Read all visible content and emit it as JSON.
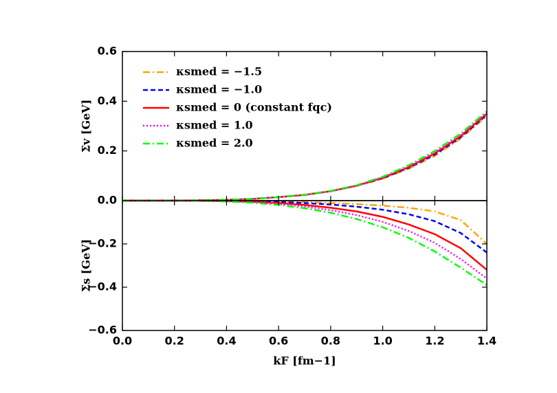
{
  "chart_data": [
    {
      "type": "line",
      "ylabel": "Σv [GeV]",
      "legend": "upper left",
      "x": [
        0,
        0.1,
        0.2,
        0.3,
        0.4,
        0.5,
        0.6,
        0.7,
        0.8,
        0.9,
        1.0,
        1.1,
        1.2,
        1.3,
        1.4
      ],
      "xlim": [
        0,
        1.4
      ],
      "ylim": [
        0,
        0.6
      ],
      "yticks": [
        {
          "value": 0,
          "label": "0.0"
        },
        0.2,
        0.4,
        0.6
      ],
      "series": [
        {
          "name": "κsmed = −1.5",
          "color": "#ffa500",
          "linestyle": "dashdot",
          "values": [
            0,
            0,
            0,
            0.001,
            0.003,
            0.007,
            0.014,
            0.023,
            0.038,
            0.06,
            0.088,
            0.128,
            0.18,
            0.25,
            0.34
          ]
        },
        {
          "name": "κsmed = −1.0",
          "color": "#0000ff",
          "linestyle": "dashed",
          "values": [
            0,
            0,
            0,
            0.001,
            0.003,
            0.007,
            0.014,
            0.023,
            0.038,
            0.06,
            0.09,
            0.132,
            0.185,
            0.255,
            0.345
          ]
        },
        {
          "name": "κsmed = 0 (constant fqc)",
          "color": "#ff0000",
          "linestyle": "solid",
          "values": [
            0,
            0,
            0,
            0.001,
            0.003,
            0.007,
            0.014,
            0.023,
            0.038,
            0.06,
            0.092,
            0.135,
            0.19,
            0.26,
            0.35
          ]
        },
        {
          "name": "κsmed = 1.0",
          "color": "#ff00ff",
          "linestyle": "dotted",
          "values": [
            0,
            0,
            0,
            0.001,
            0.003,
            0.007,
            0.014,
            0.023,
            0.038,
            0.061,
            0.094,
            0.138,
            0.195,
            0.265,
            0.355
          ]
        },
        {
          "name": "κsmed = 2.0",
          "color": "#00ff00",
          "linestyle": "dashdot",
          "values": [
            0,
            0,
            0,
            0.001,
            0.003,
            0.007,
            0.014,
            0.024,
            0.039,
            0.062,
            0.096,
            0.142,
            0.2,
            0.27,
            0.36
          ]
        }
      ]
    },
    {
      "type": "line",
      "ylabel": "Σs [GeV]",
      "xlabel": "kF [fm−1]",
      "x": [
        0,
        0.1,
        0.2,
        0.3,
        0.4,
        0.5,
        0.6,
        0.7,
        0.8,
        0.9,
        1.0,
        1.1,
        1.2,
        1.3,
        1.4
      ],
      "xlim": [
        0,
        1.4
      ],
      "ylim": [
        -0.6,
        0
      ],
      "xticks": [
        {
          "value": 0,
          "label": "0.0"
        },
        0.2,
        0.4,
        0.6,
        0.8,
        {
          "value": 1,
          "label": "1.0"
        },
        1.2,
        1.4
      ],
      "yticks": [
        {
          "value": -0.6,
          "label": "−0.6"
        },
        {
          "value": -0.4,
          "label": "−0.4"
        },
        {
          "value": -0.2,
          "label": "−0.2"
        }
      ],
      "series": [
        {
          "color": "#ffa500",
          "linestyle": "dashdot",
          "values": [
            0,
            0,
            0,
            0,
            -0.001,
            -0.002,
            -0.004,
            -0.007,
            -0.011,
            -0.016,
            -0.023,
            -0.033,
            -0.05,
            -0.09,
            -0.2
          ]
        },
        {
          "color": "#0000ff",
          "linestyle": "dashed",
          "values": [
            0,
            0,
            0,
            0,
            -0.001,
            -0.003,
            -0.006,
            -0.011,
            -0.018,
            -0.028,
            -0.042,
            -0.063,
            -0.095,
            -0.15,
            -0.24
          ]
        },
        {
          "color": "#ff0000",
          "linestyle": "solid",
          "values": [
            0,
            0,
            0,
            -0.001,
            -0.002,
            -0.005,
            -0.011,
            -0.02,
            -0.033,
            -0.05,
            -0.075,
            -0.11,
            -0.155,
            -0.22,
            -0.32
          ]
        },
        {
          "color": "#ff00ff",
          "linestyle": "dotted",
          "values": [
            0,
            0,
            0,
            -0.001,
            -0.003,
            -0.007,
            -0.015,
            -0.027,
            -0.044,
            -0.067,
            -0.098,
            -0.14,
            -0.195,
            -0.27,
            -0.36
          ]
        },
        {
          "color": "#00ff00",
          "linestyle": "dashdot",
          "values": [
            0,
            0,
            0,
            -0.001,
            -0.004,
            -0.01,
            -0.02,
            -0.035,
            -0.056,
            -0.085,
            -0.123,
            -0.172,
            -0.235,
            -0.31,
            -0.39
          ]
        }
      ]
    }
  ]
}
